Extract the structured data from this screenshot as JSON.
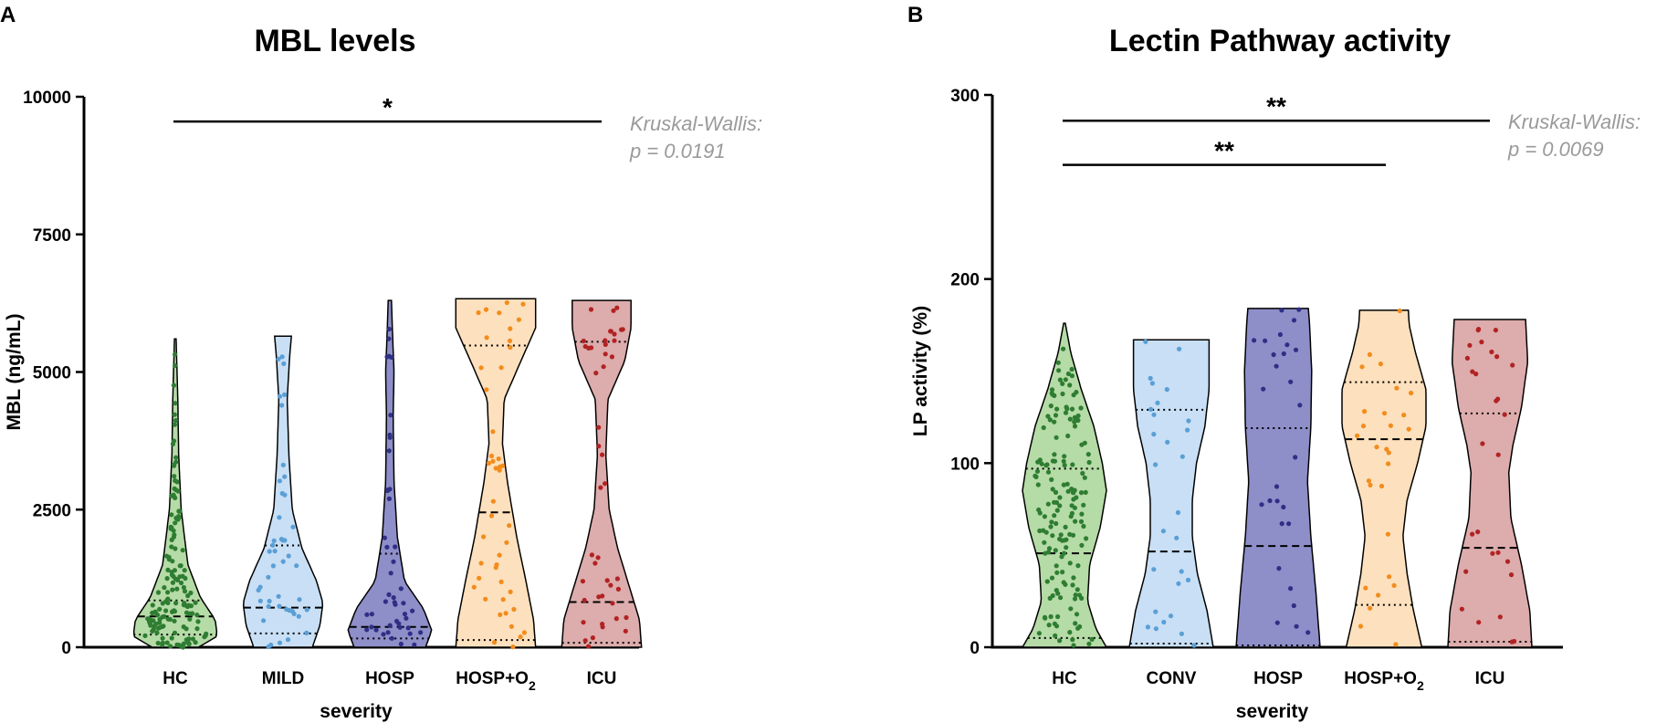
{
  "panels": [
    {
      "letter": "A",
      "chart_data": {
        "type": "violin",
        "title": "MBL levels",
        "xlabel": "severity",
        "ylabel": "MBL (ng/mL)",
        "ylim": [
          0,
          10000
        ],
        "yticks": [
          0,
          2500,
          5000,
          7500,
          10000
        ],
        "ytick_labels": [
          "0",
          "2500",
          "5000",
          "7500",
          "10000"
        ],
        "categories": [
          "HC",
          "MILD",
          "HOSP",
          "HOSP+O2",
          "ICU"
        ],
        "category_labels": [
          {
            "main": "HC",
            "sub": ""
          },
          {
            "main": "MILD",
            "sub": ""
          },
          {
            "main": "HOSP",
            "sub": ""
          },
          {
            "main": "HOSP+O",
            "sub": "2"
          },
          {
            "main": "ICU",
            "sub": ""
          }
        ],
        "series": [
          {
            "name": "HC",
            "color": "#2e7d32",
            "fill": "#b5dba6",
            "min": 0,
            "max": 5600,
            "q1": 230,
            "median": 560,
            "q3": 850,
            "shape": [
              [
                0,
                0.55
              ],
              [
                200,
                1
              ],
              [
                500,
                0.95
              ],
              [
                900,
                0.6
              ],
              [
                1500,
                0.3
              ],
              [
                2500,
                0.14
              ],
              [
                3500,
                0.08
              ],
              [
                4500,
                0.06
              ],
              [
                5600,
                0.02
              ]
            ]
          },
          {
            "name": "MILD",
            "color": "#5a9fd6",
            "fill": "#c8dff5",
            "min": 0,
            "max": 5650,
            "q1": 250,
            "median": 720,
            "q3": 1850,
            "shape": [
              [
                0,
                0.7
              ],
              [
                400,
                0.88
              ],
              [
                800,
                0.95
              ],
              [
                1200,
                0.8
              ],
              [
                1800,
                0.45
              ],
              [
                2500,
                0.22
              ],
              [
                3500,
                0.14
              ],
              [
                4500,
                0.1
              ],
              [
                5300,
                0.16
              ],
              [
                5650,
                0.2
              ]
            ]
          },
          {
            "name": "HOSP",
            "color": "#2f2f85",
            "fill": "#8e8ec9",
            "min": 0,
            "max": 6300,
            "q1": 160,
            "median": 370,
            "q3": 1700,
            "shape": [
              [
                0,
                0.85
              ],
              [
                300,
                1
              ],
              [
                700,
                0.8
              ],
              [
                1200,
                0.35
              ],
              [
                2000,
                0.18
              ],
              [
                3000,
                0.1
              ],
              [
                4200,
                0.08
              ],
              [
                5000,
                0.1
              ],
              [
                5800,
                0.06
              ],
              [
                6300,
                0.04
              ]
            ]
          },
          {
            "name": "HOSP+O2",
            "color": "#f28c1c",
            "fill": "#fde0bd",
            "min": 0,
            "max": 6330,
            "q1": 130,
            "median": 2450,
            "q3": 5480,
            "shape": [
              [
                0,
                0.95
              ],
              [
                500,
                0.9
              ],
              [
                1200,
                0.72
              ],
              [
                2000,
                0.5
              ],
              [
                3000,
                0.28
              ],
              [
                3700,
                0.16
              ],
              [
                4500,
                0.2
              ],
              [
                5200,
                0.6
              ],
              [
                5800,
                0.95
              ],
              [
                6330,
                0.95
              ]
            ]
          },
          {
            "name": "ICU",
            "color": "#b22222",
            "fill": "#ddacac",
            "min": 0,
            "max": 6300,
            "q1": 80,
            "median": 820,
            "q3": 5550,
            "shape": [
              [
                0,
                0.95
              ],
              [
                500,
                0.9
              ],
              [
                1000,
                0.7
              ],
              [
                1800,
                0.38
              ],
              [
                2500,
                0.18
              ],
              [
                3500,
                0.1
              ],
              [
                4500,
                0.15
              ],
              [
                5200,
                0.55
              ],
              [
                5800,
                0.7
              ],
              [
                6300,
                0.7
              ]
            ]
          }
        ],
        "significance": [
          {
            "from": "HC",
            "to": "ICU",
            "label": "*",
            "y": 9550
          }
        ],
        "annotation": {
          "line1": "Kruskal-Wallis:",
          "line2": "p = 0.0191"
        }
      }
    },
    {
      "letter": "B",
      "chart_data": {
        "type": "violin",
        "title": "Lectin Pathway activity",
        "xlabel": "severity",
        "ylabel": "LP activity (%)",
        "ylim": [
          0,
          300
        ],
        "yticks": [
          0,
          100,
          200,
          300
        ],
        "ytick_labels": [
          "0",
          "100",
          "200",
          "300"
        ],
        "categories": [
          "HC",
          "CONV",
          "HOSP",
          "HOSP+O2",
          "ICU"
        ],
        "category_labels": [
          {
            "main": "HC",
            "sub": ""
          },
          {
            "main": "CONV",
            "sub": ""
          },
          {
            "main": "HOSP",
            "sub": ""
          },
          {
            "main": "HOSP+O",
            "sub": "2"
          },
          {
            "main": "ICU",
            "sub": ""
          }
        ],
        "series": [
          {
            "name": "HC",
            "color": "#2e7d32",
            "fill": "#b5dba6",
            "min": 0,
            "max": 176,
            "q1": 5,
            "median": 51,
            "q3": 97,
            "shape": [
              [
                0,
                1
              ],
              [
                10,
                0.75
              ],
              [
                25,
                0.55
              ],
              [
                45,
                0.6
              ],
              [
                65,
                0.85
              ],
              [
                85,
                1
              ],
              [
                100,
                0.9
              ],
              [
                120,
                0.7
              ],
              [
                140,
                0.4
              ],
              [
                160,
                0.15
              ],
              [
                176,
                0.02
              ]
            ]
          },
          {
            "name": "CONV",
            "color": "#5a9fd6",
            "fill": "#c8dff5",
            "min": 0,
            "max": 167,
            "q1": 2,
            "median": 52,
            "q3": 129,
            "shape": [
              [
                0,
                1
              ],
              [
                20,
                0.85
              ],
              [
                40,
                0.62
              ],
              [
                60,
                0.5
              ],
              [
                80,
                0.5
              ],
              [
                100,
                0.6
              ],
              [
                120,
                0.8
              ],
              [
                140,
                0.9
              ],
              [
                155,
                0.9
              ],
              [
                167,
                0.9
              ]
            ]
          },
          {
            "name": "HOSP",
            "color": "#2f2f85",
            "fill": "#8e8ec9",
            "min": 0,
            "max": 184,
            "q1": 1,
            "median": 55,
            "q3": 119,
            "shape": [
              [
                0,
                1
              ],
              [
                30,
                0.9
              ],
              [
                60,
                0.78
              ],
              [
                90,
                0.7
              ],
              [
                120,
                0.78
              ],
              [
                150,
                0.8
              ],
              [
                175,
                0.75
              ],
              [
                184,
                0.72
              ]
            ]
          },
          {
            "name": "HOSP+O2",
            "color": "#f28c1c",
            "fill": "#fde0bd",
            "min": 0,
            "max": 183,
            "q1": 23,
            "median": 113,
            "q3": 144,
            "shape": [
              [
                0,
                0.9
              ],
              [
                20,
                0.7
              ],
              [
                40,
                0.55
              ],
              [
                60,
                0.45
              ],
              [
                80,
                0.55
              ],
              [
                100,
                0.8
              ],
              [
                120,
                1
              ],
              [
                140,
                1
              ],
              [
                160,
                0.75
              ],
              [
                175,
                0.6
              ],
              [
                183,
                0.58
              ]
            ]
          },
          {
            "name": "ICU",
            "color": "#b22222",
            "fill": "#ddacac",
            "min": 0,
            "max": 178,
            "q1": 3,
            "median": 54,
            "q3": 127,
            "shape": [
              [
                0,
                1
              ],
              [
                20,
                0.95
              ],
              [
                45,
                0.75
              ],
              [
                70,
                0.5
              ],
              [
                95,
                0.45
              ],
              [
                110,
                0.55
              ],
              [
                130,
                0.75
              ],
              [
                155,
                0.9
              ],
              [
                178,
                0.85
              ]
            ]
          }
        ],
        "significance": [
          {
            "from": "HC",
            "to": "ICU",
            "label": "**",
            "y": 286
          },
          {
            "from": "HC",
            "to": "HOSP+O2",
            "label": "**",
            "y": 262
          }
        ],
        "annotation": {
          "line1": "Kruskal-Wallis:",
          "line2": "p = 0.0069"
        }
      }
    }
  ]
}
